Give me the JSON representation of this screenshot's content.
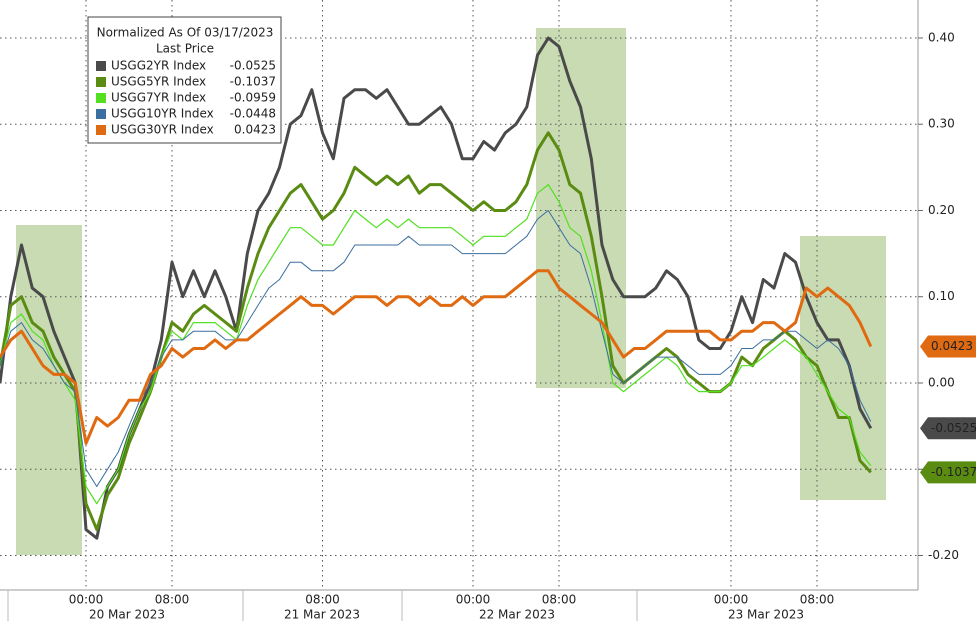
{
  "chart_data": {
    "type": "line",
    "legend_title": "Normalized As Of 03/17/2023",
    "legend_subtitle": "Last Price",
    "categories": [
      null,
      null,
      null,
      null,
      null,
      null,
      null,
      null,
      "00:00",
      null,
      null,
      null,
      null,
      null,
      null,
      null,
      "08:00",
      null,
      null,
      null,
      null,
      null,
      null,
      null,
      null,
      null,
      null,
      null,
      null,
      null,
      "08:00",
      null,
      null,
      null,
      null,
      null,
      null,
      null,
      null,
      null,
      null,
      null,
      null,
      null,
      "00:00",
      null,
      null,
      null,
      null,
      null,
      null,
      null,
      "08:00",
      null,
      null,
      null,
      null,
      null,
      null,
      null,
      null,
      null,
      null,
      null,
      null,
      null,
      null,
      null,
      "00:00",
      null,
      null,
      null,
      null,
      null,
      null,
      null,
      "08:00",
      null,
      null,
      null,
      null,
      null
    ],
    "date_labels": [
      "20 Mar 2023",
      "21 Mar 2023",
      "22 Mar 2023",
      "23 Mar 2023"
    ],
    "ylim": [
      -0.24,
      0.444
    ],
    "yticks": [
      {
        "value": -0.2,
        "label": "-0.20"
      },
      {
        "value": -0.1,
        "label": "-0.10"
      },
      {
        "value": 0,
        "label": "0.00"
      },
      {
        "value": 0.1,
        "label": "0.10"
      },
      {
        "value": 0.2,
        "label": "0.20"
      },
      {
        "value": 0.3,
        "label": "0.30"
      },
      {
        "value": 0.4,
        "label": "0.40"
      }
    ],
    "grid": true,
    "legend": "top-left",
    "series": [
      {
        "name": "USGG2YR Index",
        "color": "#4a4a4a",
        "line_width": 3,
        "end_label": true,
        "values": [
          0.0,
          0.1,
          0.16,
          0.11,
          0.1,
          0.06,
          0.03,
          0.0,
          -0.17,
          -0.18,
          -0.12,
          -0.1,
          -0.06,
          -0.03,
          0.0,
          0.05,
          0.14,
          0.1,
          0.13,
          0.1,
          0.13,
          0.1,
          0.06,
          0.15,
          0.2,
          0.22,
          0.25,
          0.3,
          0.31,
          0.34,
          0.29,
          0.26,
          0.33,
          0.34,
          0.34,
          0.33,
          0.34,
          0.32,
          0.3,
          0.3,
          0.31,
          0.32,
          0.3,
          0.26,
          0.26,
          0.28,
          0.27,
          0.29,
          0.3,
          0.32,
          0.38,
          0.4,
          0.39,
          0.35,
          0.32,
          0.26,
          0.16,
          0.12,
          0.1,
          0.1,
          0.1,
          0.11,
          0.13,
          0.12,
          0.1,
          0.05,
          0.04,
          0.04,
          0.06,
          0.1,
          0.07,
          0.12,
          0.11,
          0.15,
          0.14,
          0.1,
          0.07,
          0.05,
          0.05,
          0.02,
          -0.03,
          -0.0525
        ]
      },
      {
        "name": "USGG5YR Index",
        "color": "#5a8c12",
        "line_width": 3,
        "end_label": true,
        "values": [
          0.02,
          0.09,
          0.1,
          0.07,
          0.06,
          0.03,
          0.01,
          -0.01,
          -0.14,
          -0.17,
          -0.13,
          -0.11,
          -0.07,
          -0.04,
          -0.01,
          0.03,
          0.07,
          0.06,
          0.08,
          0.09,
          0.08,
          0.07,
          0.06,
          0.11,
          0.15,
          0.18,
          0.2,
          0.22,
          0.23,
          0.21,
          0.19,
          0.2,
          0.22,
          0.25,
          0.24,
          0.23,
          0.24,
          0.23,
          0.24,
          0.22,
          0.23,
          0.23,
          0.22,
          0.21,
          0.2,
          0.21,
          0.2,
          0.2,
          0.21,
          0.23,
          0.27,
          0.29,
          0.27,
          0.23,
          0.22,
          0.17,
          0.1,
          0.02,
          0.0,
          0.01,
          0.02,
          0.03,
          0.04,
          0.03,
          0.01,
          0.0,
          -0.01,
          -0.01,
          0.0,
          0.03,
          0.02,
          0.04,
          0.05,
          0.06,
          0.05,
          0.03,
          0.02,
          -0.01,
          -0.04,
          -0.04,
          -0.09,
          -0.1037
        ]
      },
      {
        "name": "USGG7YR Index",
        "color": "#52e020",
        "line_width": 1.2,
        "end_label": false,
        "values": [
          0.02,
          0.07,
          0.08,
          0.06,
          0.05,
          0.02,
          0.0,
          -0.02,
          -0.12,
          -0.14,
          -0.12,
          -0.1,
          -0.06,
          -0.03,
          -0.01,
          0.03,
          0.06,
          0.05,
          0.07,
          0.07,
          0.07,
          0.06,
          0.05,
          0.09,
          0.12,
          0.14,
          0.16,
          0.18,
          0.18,
          0.17,
          0.16,
          0.16,
          0.18,
          0.2,
          0.19,
          0.18,
          0.19,
          0.18,
          0.19,
          0.18,
          0.18,
          0.18,
          0.18,
          0.17,
          0.16,
          0.17,
          0.17,
          0.17,
          0.18,
          0.19,
          0.22,
          0.23,
          0.21,
          0.18,
          0.17,
          0.13,
          0.07,
          0.0,
          -0.01,
          0.0,
          0.01,
          0.02,
          0.03,
          0.02,
          0.0,
          -0.01,
          -0.01,
          -0.01,
          0.0,
          0.02,
          0.02,
          0.03,
          0.04,
          0.05,
          0.04,
          0.03,
          0.01,
          -0.01,
          -0.03,
          -0.04,
          -0.08,
          -0.0959
        ]
      },
      {
        "name": "USGG10YR Index",
        "color": "#3b6fa0",
        "line_width": 1,
        "end_label": false,
        "values": [
          0.02,
          0.06,
          0.07,
          0.05,
          0.04,
          0.02,
          0.0,
          -0.01,
          -0.1,
          -0.12,
          -0.1,
          -0.08,
          -0.05,
          -0.02,
          0.0,
          0.03,
          0.05,
          0.05,
          0.06,
          0.06,
          0.06,
          0.05,
          0.05,
          0.07,
          0.09,
          0.11,
          0.12,
          0.14,
          0.14,
          0.13,
          0.13,
          0.13,
          0.14,
          0.16,
          0.16,
          0.16,
          0.16,
          0.16,
          0.17,
          0.16,
          0.16,
          0.16,
          0.16,
          0.15,
          0.15,
          0.15,
          0.15,
          0.15,
          0.16,
          0.17,
          0.19,
          0.2,
          0.18,
          0.16,
          0.15,
          0.11,
          0.06,
          0.01,
          0.0,
          0.01,
          0.02,
          0.03,
          0.03,
          0.03,
          0.02,
          0.01,
          0.01,
          0.01,
          0.02,
          0.04,
          0.04,
          0.05,
          0.05,
          0.06,
          0.06,
          0.05,
          0.04,
          0.05,
          0.04,
          0.02,
          -0.02,
          -0.0448
        ]
      },
      {
        "name": "USGG30YR Index",
        "color": "#e06a12",
        "line_width": 3,
        "end_label": true,
        "values": [
          0.03,
          0.05,
          0.06,
          0.04,
          0.02,
          0.01,
          0.01,
          0.0,
          -0.07,
          -0.04,
          -0.05,
          -0.04,
          -0.02,
          -0.02,
          0.01,
          0.02,
          0.04,
          0.03,
          0.04,
          0.04,
          0.05,
          0.04,
          0.05,
          0.05,
          0.06,
          0.07,
          0.08,
          0.09,
          0.1,
          0.09,
          0.09,
          0.08,
          0.09,
          0.1,
          0.1,
          0.1,
          0.09,
          0.1,
          0.1,
          0.09,
          0.1,
          0.09,
          0.09,
          0.1,
          0.09,
          0.1,
          0.1,
          0.1,
          0.11,
          0.12,
          0.13,
          0.13,
          0.11,
          0.1,
          0.09,
          0.08,
          0.07,
          0.05,
          0.03,
          0.04,
          0.04,
          0.05,
          0.06,
          0.06,
          0.06,
          0.06,
          0.06,
          0.05,
          0.05,
          0.06,
          0.06,
          0.07,
          0.07,
          0.06,
          0.07,
          0.11,
          0.1,
          0.11,
          0.1,
          0.09,
          0.07,
          0.0423
        ]
      }
    ]
  }
}
